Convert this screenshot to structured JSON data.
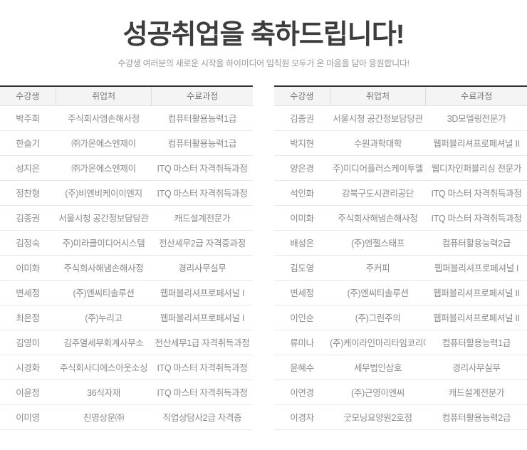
{
  "header": {
    "title": "성공취업을 축하드립니다!",
    "subtitle": "수강생 여러분의 새로운 시작을 하이미디어 임직원 모두가 온 마음을 담아 응원합니다!"
  },
  "colors": {
    "title_text": "#3d3d3d",
    "subtitle_text": "#9b9b9b",
    "table_top_border": "#333333",
    "header_bg": "#f4f4f4",
    "header_text": "#777777",
    "row_text": "#8a8a8a",
    "row_divider": "#e8e8e8",
    "page_bg": "#ffffff"
  },
  "tables": [
    {
      "name": "left",
      "columns": [
        "수강생",
        "취업처",
        "수료과정"
      ],
      "rows": [
        [
          "박주희",
          "주식회사엠손해사정",
          "컴퓨터활용능력1급"
        ],
        [
          "한슬기",
          "㈜가온에스엔제이",
          "컴퓨터활용능력1급"
        ],
        [
          "성지은",
          "㈜가온에스엔제이",
          "ITQ 마스터 자격취득과정"
        ],
        [
          "정찬형",
          "(주)비엔비케이이엔지",
          "ITQ 마스터 자격취득과정"
        ],
        [
          "김종권",
          "서울시청 공간정보담당관",
          "캐드설계전문가"
        ],
        [
          "김정숙",
          "주)미라클미디어시스템",
          "전산세무2급 자격증과정"
        ],
        [
          "이미화",
          "주식회사해냄손해사정",
          "경리사무실무"
        ],
        [
          "변세정",
          "(주)엔씨티솔루션",
          "웹퍼블리셔프로페셔널 I"
        ],
        [
          "최은정",
          "(주)누리고",
          "웹퍼블리셔프로페셔널 I"
        ],
        [
          "김영미",
          "김주열세무회계사무소",
          "전산세무1급 자격취득과정"
        ],
        [
          "시경화",
          "주식회사디에스아웃소싱",
          "ITQ 마스터 자격취득과정"
        ],
        [
          "이윤정",
          "36식자재",
          "ITQ 마스터 자격취득과정"
        ],
        [
          "이미영",
          "진영상운㈜",
          "직업상담사2급 자격증"
        ]
      ]
    },
    {
      "name": "right",
      "columns": [
        "수강생",
        "취업처",
        "수료과정"
      ],
      "rows": [
        [
          "김종권",
          "서울시청 공간정보담당관",
          "3D모델링전문가"
        ],
        [
          "박지현",
          "수원과학대학",
          "웹퍼블리셔프로페셔널 II"
        ],
        [
          "양은경",
          "주)미디어플러스케이투엘",
          "웹디자인퍼블리싱 전문가"
        ],
        [
          "석인화",
          "강북구도시관리공단",
          "ITQ 마스터 자격취득과정"
        ],
        [
          "이미화",
          "주식회사해냄손해사정",
          "ITQ 마스터 자격취득과정"
        ],
        [
          "배성은",
          "(주)엔젤스태프",
          "컴퓨터활용능력2급"
        ],
        [
          "김도영",
          "주커피",
          "웹퍼블리셔프로페셔널 I"
        ],
        [
          "변세정",
          "(주)엔씨티솔루션",
          "웹퍼블리셔프로페셔널 II"
        ],
        [
          "이인순",
          "(주)그린주의",
          "웹퍼블리셔프로페셔널 II"
        ],
        [
          "류미나",
          "(주)케이라인마리타임코리아",
          "컴퓨터활용능력1급"
        ],
        [
          "윤혜수",
          "세무법인삼호",
          "경리사무실무"
        ],
        [
          "이연경",
          "(주)근영이엔씨",
          "캐드설계전문가"
        ],
        [
          "이경자",
          "굿모닝요양원2호점",
          "컴퓨터활용능력2급"
        ]
      ]
    }
  ]
}
